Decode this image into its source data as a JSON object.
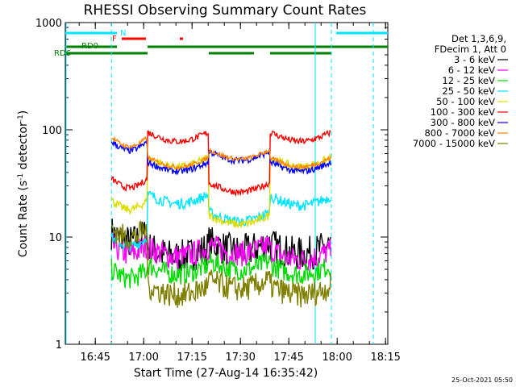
{
  "chart_data": {
    "type": "line",
    "title": "RHESSI Observing Summary Count Rates",
    "xlabel": "Start Time (27-Aug-14 16:35:42)",
    "ylabel_main": "Count Rate (s",
    "ylabel_sup1": "-1",
    "ylabel_mid": " detector",
    "ylabel_sup2": "-1",
    "ylabel_end": ")",
    "yscale": "log",
    "ylim": [
      1,
      1000
    ],
    "xlim": [
      0,
      100
    ],
    "y_tick_labels": [
      "1",
      "10",
      "100",
      "1000"
    ],
    "x_ticks": [
      {
        "t": 9.3,
        "label": "16:45"
      },
      {
        "t": 24.3,
        "label": "17:00"
      },
      {
        "t": 39.3,
        "label": "17:15"
      },
      {
        "t": 54.3,
        "label": "17:30"
      },
      {
        "t": 69.3,
        "label": "17:45"
      },
      {
        "t": 84.3,
        "label": "18:00"
      },
      {
        "t": 99.3,
        "label": "18:15"
      }
    ],
    "legend_header": [
      "Det 1,3,6,9,",
      "FDecim 1, Att 0"
    ],
    "legend_position": "right",
    "timestamp": "25-Oct-2021 05:50",
    "day_start": 14.3,
    "day_end": 82.5,
    "segments": [
      14.3,
      25.5,
      44.5,
      63.5,
      82.5
    ],
    "series": [
      {
        "name": "3 - 6 keV",
        "color": "#000000",
        "levels": [
          11,
          8,
          9,
          8.5
        ],
        "noise": 0.16
      },
      {
        "name": "6 - 12 keV",
        "color": "#ff00ff",
        "levels": [
          8.5,
          8,
          8.5,
          7.5
        ],
        "noise": 0.12
      },
      {
        "name": "12 - 25 keV",
        "color": "#00dd00",
        "levels": [
          5,
          5.5,
          6,
          5.5
        ],
        "noise": 0.1
      },
      {
        "name": "25 - 50 keV",
        "color": "#00e5ff",
        "levels": [
          10,
          25,
          17,
          24
        ],
        "noise": 0.05
      },
      {
        "name": "50 - 100 keV",
        "color": "#dddd00",
        "levels": [
          22,
          55,
          16,
          55
        ],
        "noise": 0.04
      },
      {
        "name": "100 - 300 keV",
        "color": "#ff0000",
        "levels": [
          35,
          95,
          32,
          95
        ],
        "noise": 0.03
      },
      {
        "name": "300 - 800 keV",
        "color": "#0000ff",
        "levels": [
          78,
          50,
          63,
          50
        ],
        "noise": 0.03
      },
      {
        "name": "800 - 7000 keV",
        "color": "#ff8000",
        "levels": [
          85,
          55,
          65,
          55
        ],
        "noise": 0.02
      },
      {
        "name": "7000 - 15000 keV",
        "color": "#808000",
        "levels": [
          12,
          3.5,
          4,
          3.5
        ],
        "noise": 0.12
      }
    ],
    "flags": {
      "night_label": "N",
      "flare_label": "F",
      "rd0_label": "RD0",
      "rd6_label": "RD6",
      "night_bars": [
        [
          0,
          16
        ],
        [
          84,
          100
        ]
      ],
      "flare_bars": [
        [
          17.5,
          25
        ],
        [
          35.5,
          36.5
        ]
      ],
      "rd0_bars": [
        [
          0,
          16
        ],
        [
          25.5,
          100
        ]
      ],
      "rd6_bars": [
        [
          0,
          25.5
        ],
        [
          44.5,
          58.5
        ],
        [
          63.5,
          82.5
        ]
      ]
    }
  }
}
